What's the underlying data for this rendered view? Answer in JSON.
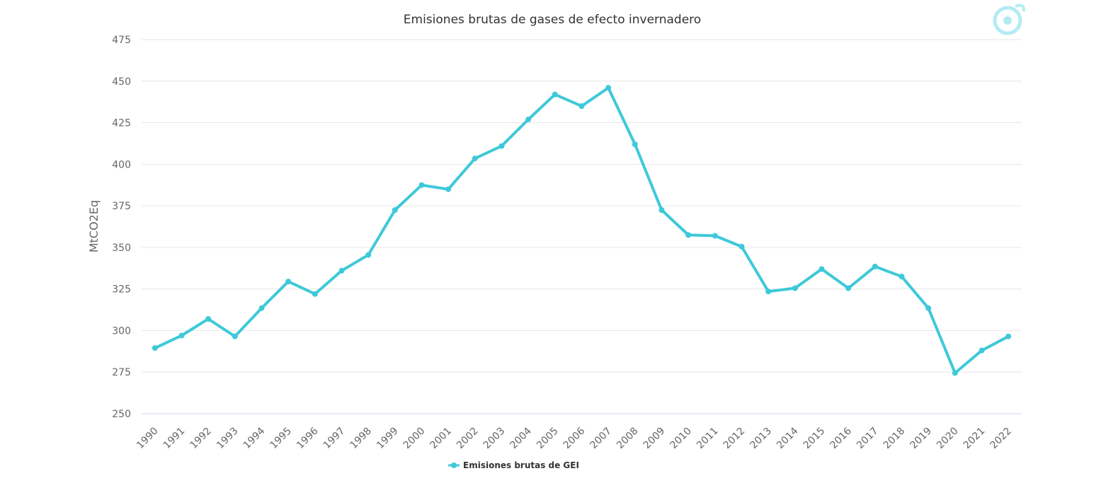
{
  "chart_data": {
    "type": "line",
    "title": "Emisiones brutas de gases de efecto invernadero",
    "xlabel": "",
    "ylabel": "MtCO2Eq",
    "ylim": [
      250,
      475
    ],
    "yticks": [
      250,
      275,
      300,
      325,
      350,
      375,
      400,
      425,
      450,
      475
    ],
    "grid": true,
    "legend_position": "bottom-center",
    "categories": [
      "1990",
      "1991",
      "1992",
      "1993",
      "1994",
      "1995",
      "1996",
      "1997",
      "1998",
      "1999",
      "2000",
      "2001",
      "2002",
      "2003",
      "2004",
      "2005",
      "2006",
      "2007",
      "2008",
      "2009",
      "2010",
      "2011",
      "2012",
      "2013",
      "2014",
      "2015",
      "2016",
      "2017",
      "2018",
      "2019",
      "2020",
      "2021",
      "2022"
    ],
    "series": [
      {
        "name": "Emisiones brutas de GEI",
        "color": "#3ec9d9",
        "values": [
          289.5,
          297,
          307,
          296.5,
          313.5,
          329.5,
          322,
          336,
          345.5,
          372.5,
          387.5,
          385,
          403.5,
          411,
          427,
          442,
          435,
          446,
          412,
          372.5,
          357.5,
          357,
          350.5,
          323.5,
          325.5,
          337,
          325.5,
          338.5,
          332.5,
          313.5,
          274.5,
          288,
          296.5
        ]
      }
    ]
  },
  "logo_icon": "maldita-logo-icon"
}
